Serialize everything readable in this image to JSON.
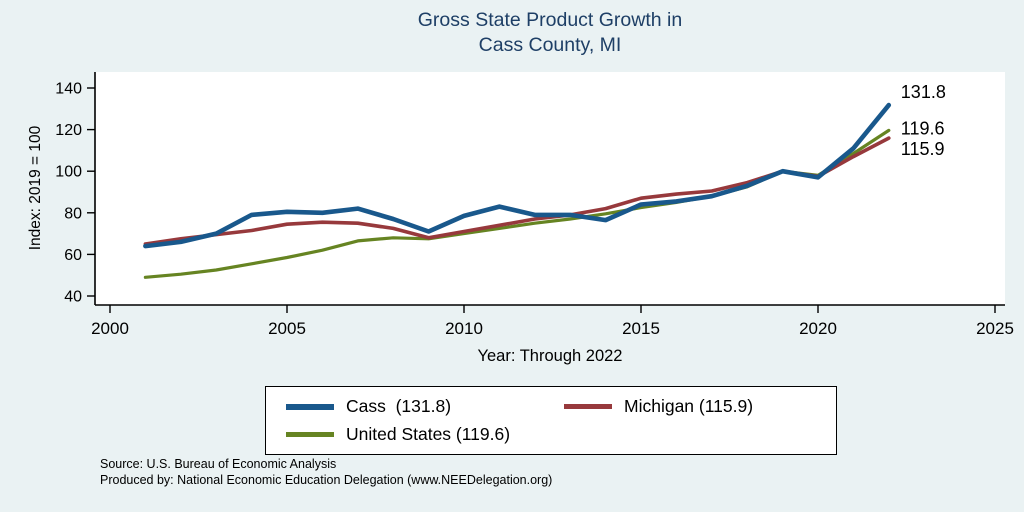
{
  "title": {
    "line1": "Gross State Product Growth in",
    "line2": "Cass County, MI"
  },
  "axes": {
    "y_label": "Index: 2019 = 100",
    "x_label": "Year: Through 2022"
  },
  "chart_data": {
    "type": "line",
    "title": "Gross State Product Growth in Cass County, MI",
    "xlabel": "Year: Through 2022",
    "ylabel": "Index: 2019 = 100",
    "xlim": [
      2000,
      2025
    ],
    "ylim": [
      40,
      140
    ],
    "x_ticks": [
      2000,
      2005,
      2010,
      2015,
      2020,
      2025
    ],
    "y_ticks": [
      40,
      60,
      80,
      100,
      120,
      140
    ],
    "grid": false,
    "legend_position": "bottom",
    "x": [
      2001,
      2002,
      2003,
      2004,
      2005,
      2006,
      2007,
      2008,
      2009,
      2010,
      2011,
      2012,
      2013,
      2014,
      2015,
      2016,
      2017,
      2018,
      2019,
      2020,
      2021,
      2022
    ],
    "series": [
      {
        "name": "Cass",
        "color": "#19588c",
        "end_label": "131.8",
        "values": [
          64,
          66,
          70,
          79,
          80.5,
          80,
          82,
          77,
          71,
          78.5,
          83,
          79,
          79,
          76.5,
          84,
          85.5,
          88,
          93,
          100,
          97,
          111,
          131.8
        ]
      },
      {
        "name": "Michigan",
        "color": "#97393c",
        "end_label": "115.9",
        "values": [
          65,
          67.5,
          69.5,
          71.5,
          74.5,
          75.5,
          75,
          72.5,
          68,
          71,
          74,
          77,
          79,
          82,
          87,
          89,
          90.5,
          94.5,
          100,
          97.5,
          107,
          115.9
        ]
      },
      {
        "name": "United States",
        "color": "#668422",
        "end_label": "119.6",
        "values": [
          49,
          50.5,
          52.5,
          55.5,
          58.5,
          62,
          66.5,
          68,
          67.5,
          70,
          72.5,
          75,
          77,
          79.5,
          82.5,
          85,
          88,
          92.5,
          100,
          98,
          108.5,
          119.6
        ]
      }
    ]
  },
  "legend": {
    "items": [
      {
        "series": "Cass",
        "label": "Cass  (131.8)"
      },
      {
        "series": "Michigan",
        "label": "Michigan (115.9)"
      },
      {
        "series": "United States",
        "label": "United States (119.6)"
      }
    ]
  },
  "footer": {
    "line1": "Source: U.S. Bureau of Economic Analysis",
    "line2": "Produced by: National Economic Education Delegation (www.NEEDelegation.org)"
  },
  "colors": {
    "background": "#eaf2f3",
    "plot_background": "#ffffff",
    "title": "#1e3f66",
    "axis": "#000000"
  }
}
